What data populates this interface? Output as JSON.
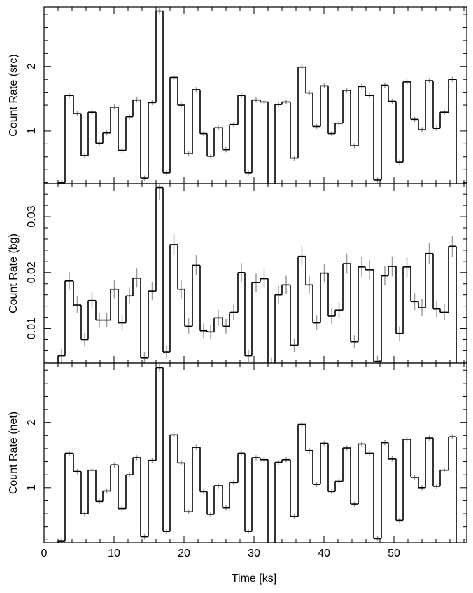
{
  "chart_data": {
    "type": "step",
    "xlabel": "Time [ks]",
    "xlim": [
      0,
      60.4
    ],
    "xticks": [
      0,
      10,
      20,
      30,
      40,
      50
    ],
    "xminor": [
      2,
      4,
      6,
      8,
      12,
      14,
      16,
      18,
      22,
      24,
      26,
      28,
      32,
      34,
      36,
      38,
      42,
      44,
      46,
      48,
      52,
      54,
      56,
      58,
      60
    ],
    "bins": [
      2.0,
      3.0,
      4.2,
      5.3,
      6.3,
      7.4,
      8.4,
      9.5,
      10.6,
      11.7,
      12.7,
      13.8,
      14.9,
      16.0,
      17.0,
      18.0,
      19.1,
      20.1,
      21.2,
      22.3,
      23.3,
      24.3,
      25.5,
      26.5,
      27.7,
      28.7,
      29.7,
      30.9,
      32.0,
      33.0,
      34.0,
      35.2,
      36.3,
      37.4,
      38.4,
      39.5,
      40.6,
      41.6,
      42.7,
      43.8,
      44.9,
      45.9,
      47.1,
      48.2,
      49.2,
      50.3,
      51.3,
      52.4,
      53.5,
      54.5,
      55.6,
      56.6,
      57.8,
      58.9
    ],
    "line_color": "#000000",
    "error_color": "#9a9a9a",
    "panels": [
      {
        "ylabel": "Count Rate (src)",
        "ylim": [
          0.185,
          2.92
        ],
        "yticks": [
          1,
          2
        ],
        "yminor": [
          0.2,
          0.4,
          0.6,
          0.8,
          1.2,
          1.4,
          1.6,
          1.8,
          2.2,
          2.4,
          2.6,
          2.8
        ],
        "values": [
          0.2,
          1.55,
          1.27,
          0.62,
          1.29,
          0.81,
          0.97,
          1.37,
          0.7,
          1.22,
          1.48,
          0.27,
          1.44,
          2.86,
          0.35,
          1.83,
          1.4,
          0.65,
          1.64,
          0.96,
          0.61,
          1.05,
          0.71,
          1.1,
          1.55,
          0.35,
          1.48,
          1.45,
          0.14,
          1.41,
          1.45,
          0.58,
          1.99,
          1.59,
          1.07,
          1.7,
          0.96,
          1.12,
          1.63,
          0.77,
          1.69,
          1.55,
          0.24,
          1.71,
          1.46,
          0.52,
          1.76,
          1.18,
          1.02,
          1.78,
          1.04,
          1.29,
          1.8
        ],
        "errors": [
          0.04,
          0.04,
          0.04,
          0.04,
          0.04,
          0.04,
          0.04,
          0.04,
          0.04,
          0.04,
          0.04,
          0.04,
          0.04,
          0.05,
          0.04,
          0.04,
          0.04,
          0.04,
          0.04,
          0.04,
          0.04,
          0.04,
          0.04,
          0.04,
          0.04,
          0.04,
          0.04,
          0.04,
          0.04,
          0.04,
          0.04,
          0.04,
          0.04,
          0.04,
          0.04,
          0.04,
          0.04,
          0.04,
          0.04,
          0.04,
          0.04,
          0.04,
          0.04,
          0.04,
          0.04,
          0.04,
          0.04,
          0.04,
          0.04,
          0.04,
          0.04,
          0.04,
          0.04
        ]
      },
      {
        "ylabel": "Count Rate (bg)",
        "ylim": [
          0.0038,
          0.0359
        ],
        "yticks": [
          0.01,
          0.02,
          0.03
        ],
        "yminor": [
          0.004,
          0.006,
          0.008,
          0.012,
          0.014,
          0.016,
          0.018,
          0.022,
          0.024,
          0.026,
          0.028,
          0.032,
          0.034
        ],
        "values": [
          0.0051,
          0.0185,
          0.0142,
          0.008,
          0.015,
          0.0115,
          0.0115,
          0.017,
          0.011,
          0.0158,
          0.019,
          0.0047,
          0.0167,
          0.0352,
          0.0058,
          0.025,
          0.017,
          0.0104,
          0.0213,
          0.0096,
          0.0094,
          0.0119,
          0.0104,
          0.0129,
          0.02,
          0.0051,
          0.0182,
          0.0189,
          0.0037,
          0.016,
          0.0178,
          0.007,
          0.0229,
          0.0178,
          0.011,
          0.0199,
          0.0122,
          0.0133,
          0.0216,
          0.0076,
          0.021,
          0.0205,
          0.0041,
          0.0194,
          0.0211,
          0.0091,
          0.021,
          0.0148,
          0.0137,
          0.0234,
          0.0135,
          0.0129,
          0.0247
        ],
        "errors": [
          0.0012,
          0.0016,
          0.0015,
          0.0012,
          0.0015,
          0.0013,
          0.0013,
          0.0016,
          0.0013,
          0.0015,
          0.0017,
          0.0011,
          0.0016,
          0.0022,
          0.0012,
          0.0019,
          0.0016,
          0.0014,
          0.0018,
          0.0013,
          0.0013,
          0.0014,
          0.0013,
          0.0014,
          0.0017,
          0.0011,
          0.0016,
          0.0017,
          0.001,
          0.0016,
          0.0016,
          0.0012,
          0.0018,
          0.0016,
          0.0013,
          0.0017,
          0.0014,
          0.0014,
          0.0018,
          0.0012,
          0.0018,
          0.0017,
          0.001,
          0.0017,
          0.0018,
          0.0013,
          0.0018,
          0.0015,
          0.0015,
          0.0019,
          0.0015,
          0.0014,
          0.0019
        ]
      },
      {
        "ylabel": "Count Rate (net)",
        "ylim": [
          0.16,
          2.91
        ],
        "yticks": [
          1,
          2
        ],
        "yminor": [
          0.2,
          0.4,
          0.6,
          0.8,
          1.2,
          1.4,
          1.6,
          1.8,
          2.2,
          2.4,
          2.6,
          2.8
        ],
        "values": [
          0.18,
          1.53,
          1.25,
          0.6,
          1.27,
          0.79,
          0.95,
          1.35,
          0.68,
          1.2,
          1.46,
          0.25,
          1.42,
          2.84,
          0.33,
          1.81,
          1.38,
          0.63,
          1.62,
          0.94,
          0.59,
          1.03,
          0.69,
          1.08,
          1.53,
          0.33,
          1.46,
          1.43,
          0.12,
          1.39,
          1.43,
          0.56,
          1.97,
          1.57,
          1.05,
          1.68,
          0.94,
          1.1,
          1.61,
          0.75,
          1.67,
          1.53,
          0.22,
          1.69,
          1.44,
          0.5,
          1.74,
          1.16,
          1.0,
          1.76,
          1.02,
          1.27,
          1.78
        ],
        "errors": [
          0.04,
          0.04,
          0.04,
          0.04,
          0.04,
          0.04,
          0.04,
          0.04,
          0.04,
          0.04,
          0.04,
          0.04,
          0.04,
          0.05,
          0.04,
          0.04,
          0.04,
          0.04,
          0.04,
          0.04,
          0.04,
          0.04,
          0.04,
          0.04,
          0.04,
          0.04,
          0.04,
          0.04,
          0.04,
          0.04,
          0.04,
          0.04,
          0.04,
          0.04,
          0.04,
          0.04,
          0.04,
          0.04,
          0.04,
          0.04,
          0.04,
          0.04,
          0.04,
          0.04,
          0.04,
          0.04,
          0.04,
          0.04,
          0.04,
          0.04,
          0.04,
          0.04,
          0.04
        ]
      }
    ]
  }
}
